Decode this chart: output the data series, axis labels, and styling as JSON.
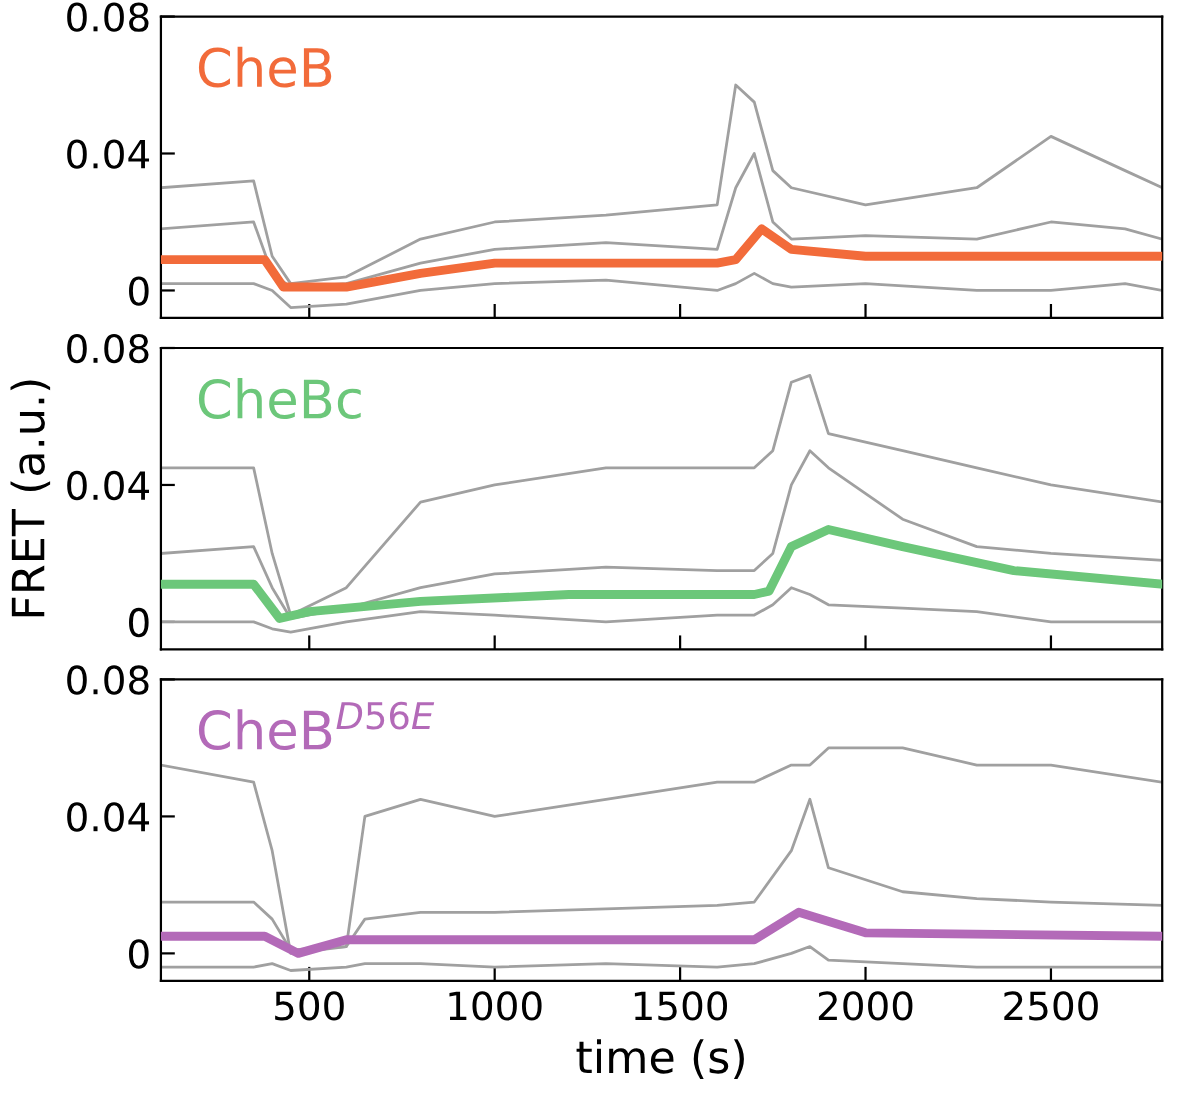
{
  "chart_data": [
    {
      "type": "line",
      "xlim": [
        100,
        2800
      ],
      "ylim": [
        -0.008,
        0.08
      ],
      "yticks": [
        0,
        0.04,
        0.08
      ],
      "xticks": [
        500,
        1000,
        1500,
        2000,
        2500
      ],
      "tick_labels": "y",
      "grid": false,
      "legend": false,
      "series": [
        {
          "color": "#a0a0a0",
          "x": [
            100,
            350,
            400,
            450,
            600,
            800,
            1000,
            1300,
            1600,
            1650,
            1700,
            1750,
            1800,
            2000,
            2300,
            2500,
            2700,
            2800
          ],
          "values": [
            0.03,
            0.032,
            0.01,
            0.002,
            0.004,
            0.015,
            0.02,
            0.022,
            0.025,
            0.06,
            0.055,
            0.035,
            0.03,
            0.025,
            0.03,
            0.045,
            0.035,
            0.03
          ]
        },
        {
          "color": "#a0a0a0",
          "x": [
            100,
            350,
            400,
            450,
            600,
            800,
            1000,
            1300,
            1600,
            1650,
            1700,
            1750,
            1800,
            2000,
            2300,
            2500,
            2700,
            2800
          ],
          "values": [
            0.002,
            0.002,
            0.0,
            -0.005,
            -0.004,
            0.0,
            0.002,
            0.003,
            0.0,
            0.002,
            0.005,
            0.002,
            0.001,
            0.002,
            0.0,
            0.0,
            0.002,
            0.0
          ]
        },
        {
          "color": "#a0a0a0",
          "x": [
            100,
            350,
            400,
            450,
            600,
            800,
            1000,
            1300,
            1600,
            1650,
            1700,
            1750,
            1800,
            2000,
            2300,
            2500,
            2700,
            2800
          ],
          "values": [
            0.018,
            0.02,
            0.005,
            0.001,
            0.002,
            0.008,
            0.012,
            0.014,
            0.012,
            0.03,
            0.04,
            0.02,
            0.015,
            0.016,
            0.015,
            0.02,
            0.018,
            0.015
          ]
        },
        {
          "name": "CheB",
          "color": "#f26b3a",
          "x": [
            100,
            380,
            430,
            600,
            800,
            1000,
            1600,
            1650,
            1720,
            1800,
            2000,
            2800
          ],
          "values": [
            0.009,
            0.009,
            0.001,
            0.001,
            0.005,
            0.008,
            0.008,
            0.009,
            0.018,
            0.012,
            0.01,
            0.01
          ]
        }
      ]
    },
    {
      "type": "line",
      "xlim": [
        100,
        2800
      ],
      "ylim": [
        -0.008,
        0.08
      ],
      "yticks": [
        0,
        0.04,
        0.08
      ],
      "xticks": [
        500,
        1000,
        1500,
        2000,
        2500
      ],
      "tick_labels": "y",
      "grid": false,
      "legend": false,
      "ylabel": "FRET (a.u.)",
      "series": [
        {
          "color": "#a0a0a0",
          "x": [
            100,
            350,
            400,
            450,
            600,
            800,
            1000,
            1300,
            1600,
            1700,
            1750,
            1800,
            1850,
            1900,
            2100,
            2300,
            2500,
            2800
          ],
          "values": [
            0.045,
            0.045,
            0.02,
            0.002,
            0.01,
            0.035,
            0.04,
            0.045,
            0.045,
            0.045,
            0.05,
            0.07,
            0.072,
            0.055,
            0.05,
            0.045,
            0.04,
            0.035
          ]
        },
        {
          "color": "#a0a0a0",
          "x": [
            100,
            350,
            400,
            450,
            600,
            800,
            1000,
            1300,
            1600,
            1700,
            1750,
            1800,
            1850,
            1900,
            2100,
            2300,
            2500,
            2800
          ],
          "values": [
            0.0,
            0.0,
            -0.002,
            -0.003,
            0.0,
            0.003,
            0.002,
            0.0,
            0.002,
            0.002,
            0.005,
            0.01,
            0.008,
            0.005,
            0.004,
            0.003,
            0.0,
            0.0
          ]
        },
        {
          "color": "#a0a0a0",
          "x": [
            100,
            350,
            400,
            450,
            600,
            800,
            1000,
            1300,
            1600,
            1700,
            1750,
            1800,
            1850,
            1900,
            2100,
            2300,
            2500,
            2800
          ],
          "values": [
            0.02,
            0.022,
            0.01,
            0.001,
            0.004,
            0.01,
            0.014,
            0.016,
            0.015,
            0.015,
            0.02,
            0.04,
            0.05,
            0.045,
            0.03,
            0.022,
            0.02,
            0.018
          ]
        },
        {
          "name": "CheBc",
          "color": "#6cc77a",
          "x": [
            100,
            350,
            420,
            500,
            800,
            1200,
            1700,
            1740,
            1800,
            1900,
            2100,
            2400,
            2800
          ],
          "values": [
            0.011,
            0.011,
            0.001,
            0.003,
            0.006,
            0.008,
            0.008,
            0.009,
            0.022,
            0.027,
            0.022,
            0.015,
            0.011
          ]
        }
      ]
    },
    {
      "type": "line",
      "xlim": [
        100,
        2800
      ],
      "ylim": [
        -0.008,
        0.08
      ],
      "yticks": [
        0,
        0.04,
        0.08
      ],
      "xticks": [
        500,
        1000,
        1500,
        2000,
        2500
      ],
      "grid": false,
      "legend": false,
      "xlabel": "time (s)",
      "series": [
        {
          "color": "#a0a0a0",
          "x": [
            100,
            350,
            400,
            450,
            600,
            650,
            800,
            1000,
            1300,
            1600,
            1700,
            1800,
            1850,
            1900,
            2100,
            2300,
            2500,
            2800
          ],
          "values": [
            0.055,
            0.05,
            0.03,
            0.0,
            0.002,
            0.04,
            0.045,
            0.04,
            0.045,
            0.05,
            0.05,
            0.055,
            0.055,
            0.06,
            0.06,
            0.055,
            0.055,
            0.05
          ]
        },
        {
          "color": "#a0a0a0",
          "x": [
            100,
            350,
            400,
            450,
            600,
            650,
            800,
            1000,
            1300,
            1600,
            1700,
            1800,
            1850,
            1900,
            2100,
            2300,
            2500,
            2800
          ],
          "values": [
            -0.004,
            -0.004,
            -0.003,
            -0.005,
            -0.004,
            -0.003,
            -0.003,
            -0.004,
            -0.003,
            -0.004,
            -0.003,
            0.0,
            0.002,
            -0.002,
            -0.003,
            -0.004,
            -0.004,
            -0.004
          ]
        },
        {
          "color": "#a0a0a0",
          "x": [
            100,
            350,
            400,
            450,
            600,
            650,
            800,
            1000,
            1300,
            1600,
            1700,
            1800,
            1850,
            1900,
            2100,
            2300,
            2500,
            2800
          ],
          "values": [
            0.015,
            0.015,
            0.01,
            0.001,
            0.002,
            0.01,
            0.012,
            0.012,
            0.013,
            0.014,
            0.015,
            0.03,
            0.045,
            0.025,
            0.018,
            0.016,
            0.015,
            0.014
          ]
        },
        {
          "name": "CheB$^{D56E}$",
          "color": "#b36ab8",
          "x": [
            100,
            380,
            470,
            600,
            1700,
            1820,
            2000,
            2800
          ],
          "values": [
            0.005,
            0.005,
            0.0,
            0.004,
            0.004,
            0.012,
            0.006,
            0.005
          ]
        }
      ]
    }
  ]
}
